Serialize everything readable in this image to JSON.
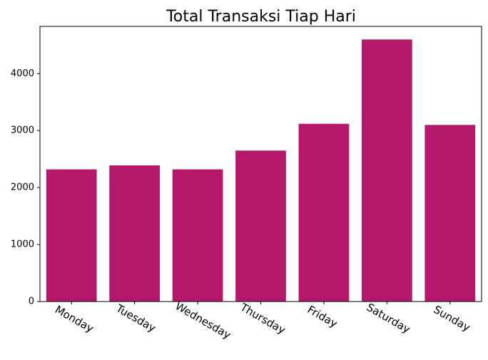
{
  "chart_data": {
    "type": "bar",
    "title": "Total Transaksi Tiap Hari",
    "xlabel": "",
    "ylabel": "",
    "categories": [
      "Monday",
      "Tuesday",
      "Wednesday",
      "Thursday",
      "Friday",
      "Saturday",
      "Sunday"
    ],
    "values": [
      2320,
      2390,
      2320,
      2650,
      3120,
      4600,
      3100
    ],
    "ylim": [
      0,
      4830
    ],
    "yticks": [
      0,
      1000,
      2000,
      3000,
      4000
    ],
    "bar_color": "#b5186a",
    "grid": false,
    "legend": false,
    "xtick_rotation": -30
  }
}
